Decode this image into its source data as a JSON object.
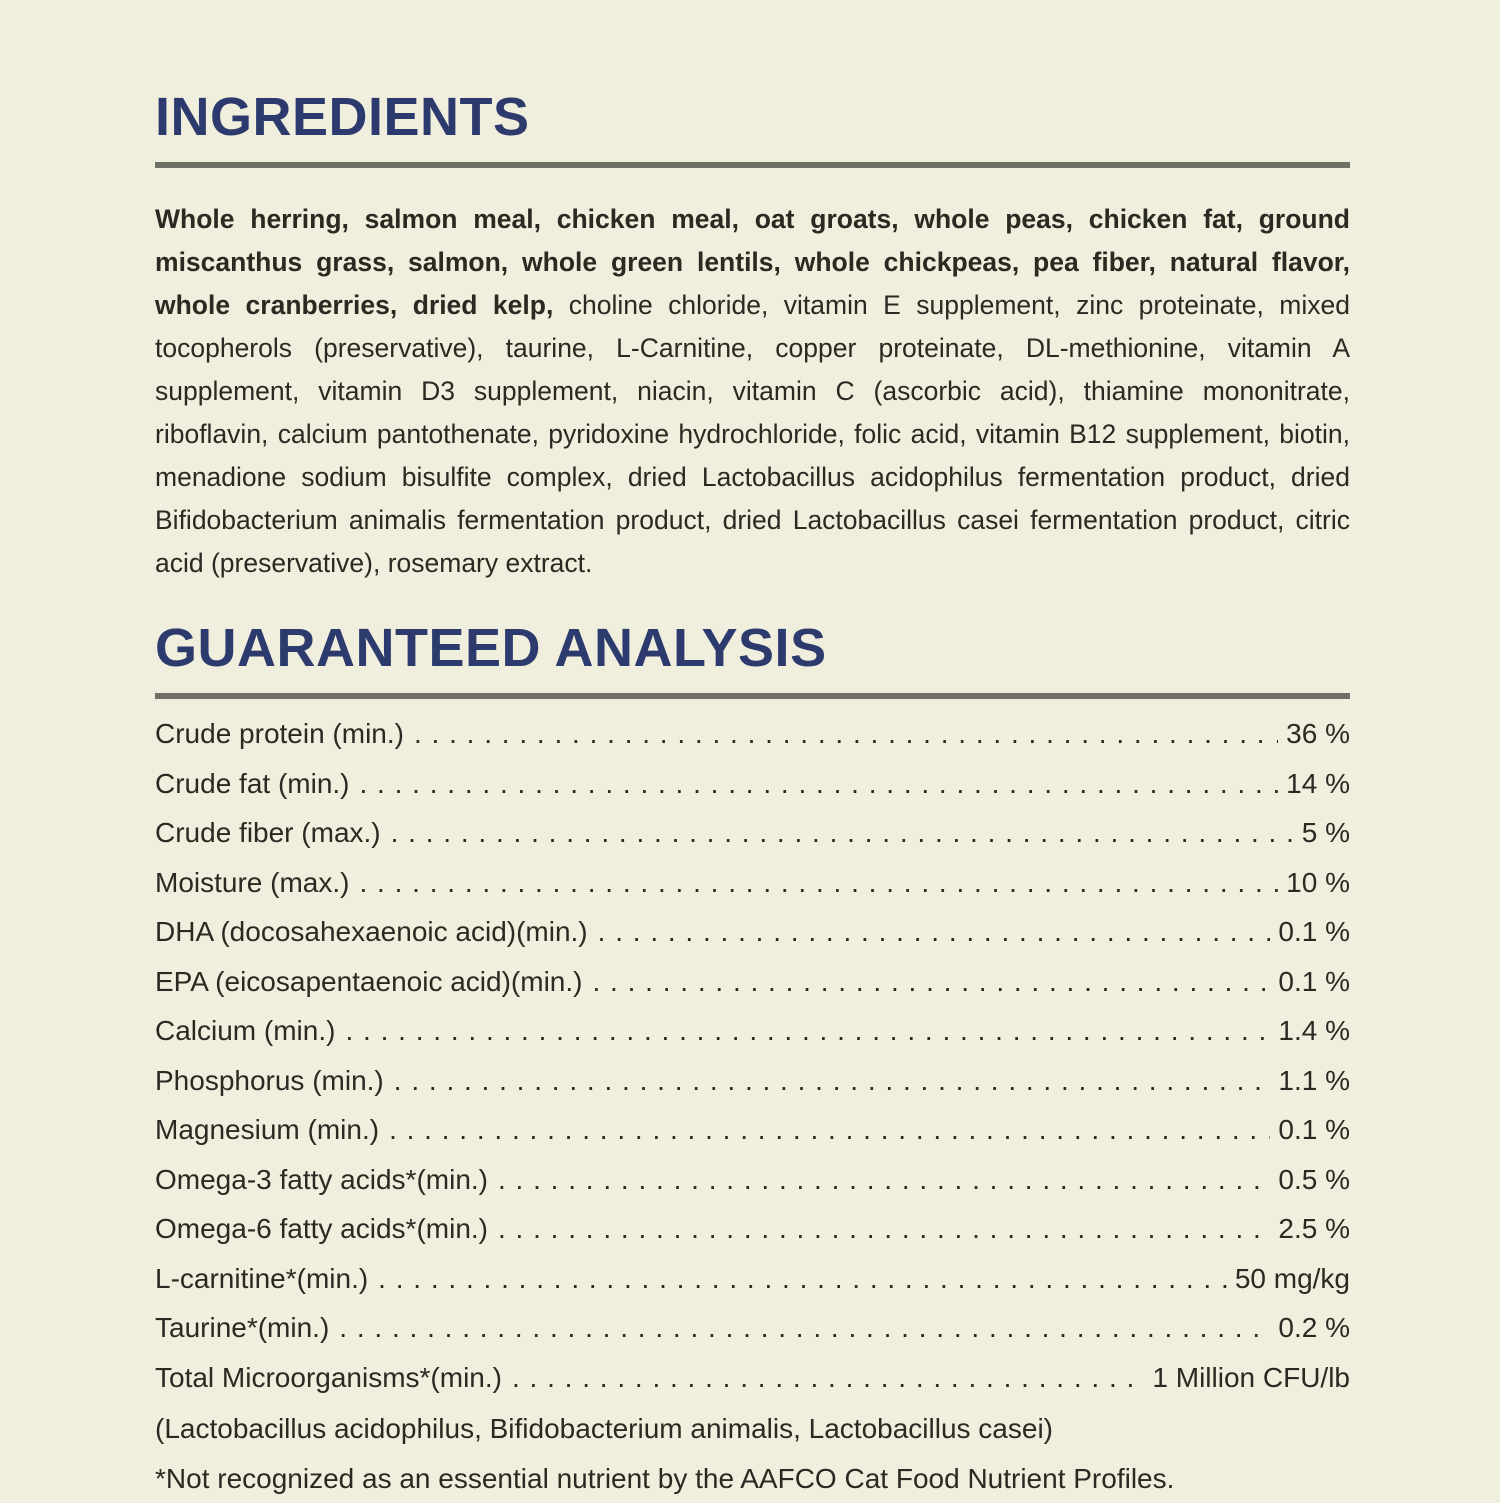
{
  "page": {
    "background_color": "#f0eedc",
    "heading_color": "#2d3a6e",
    "rule_color": "#6f7167",
    "text_color": "#2a2a22"
  },
  "ingredients": {
    "heading": "INGREDIENTS",
    "bold_text": "Whole herring, salmon meal, chicken meal, oat groats, whole peas, chicken fat, ground miscanthus grass, salmon, whole green lentils, whole chickpeas, pea fiber, natural flavor, whole cranberries, dried kelp,",
    "regular_text": "choline chloride, vitamin E supplement, zinc proteinate, mixed tocopherols (preservative), taurine, L-Carnitine, copper proteinate, DL-methionine, vitamin A supplement, vitamin D3 supplement, niacin, vitamin C (ascorbic acid), thiamine mononitrate, riboflavin, calcium pantothenate, pyridoxine hydrochloride, folic acid, vitamin B12 supplement, biotin, menadione sodium bisulfite complex, dried Lactobacillus acidophilus fermentation product, dried Bifidobacterium animalis fermentation product, dried Lactobacillus casei fermentation product, citric acid (preservative), rosemary extract."
  },
  "analysis": {
    "heading": "GUARANTEED ANALYSIS",
    "rows": [
      {
        "label": "Crude protein (min.)",
        "value": "36 %"
      },
      {
        "label": "Crude fat (min.)",
        "value": "14 %"
      },
      {
        "label": "Crude fiber (max.)",
        "value": "5 %"
      },
      {
        "label": "Moisture (max.)",
        "value": "10 %"
      },
      {
        "label": "DHA (docosahexaenoic acid)(min.)",
        "value": "0.1 %"
      },
      {
        "label": "EPA (eicosapentaenoic acid)(min.)",
        "value": "0.1 %"
      },
      {
        "label": "Calcium (min.)",
        "value": "1.4 %"
      },
      {
        "label": "Phosphorus (min.)",
        "value": "1.1 %"
      },
      {
        "label": "Magnesium (min.)",
        "value": "0.1 %"
      },
      {
        "label": "Omega-3 fatty acids*(min.)",
        "value": "0.5 %"
      },
      {
        "label": "Omega-6 fatty acids*(min.)",
        "value": "2.5 %"
      },
      {
        "label": "L-carnitine*(min.)",
        "value": "50 mg/kg"
      },
      {
        "label": "Taurine*(min.)",
        "value": "0.2 %"
      },
      {
        "label": "Total Microorganisms*(min.)",
        "value": "1 Million CFU/lb"
      }
    ],
    "organisms_note": "(Lactobacillus acidophilus, Bifidobacterium animalis, Lactobacillus casei)",
    "footnote": "*Not recognized as an essential nutrient by the AAFCO Cat Food Nutrient Profiles."
  }
}
